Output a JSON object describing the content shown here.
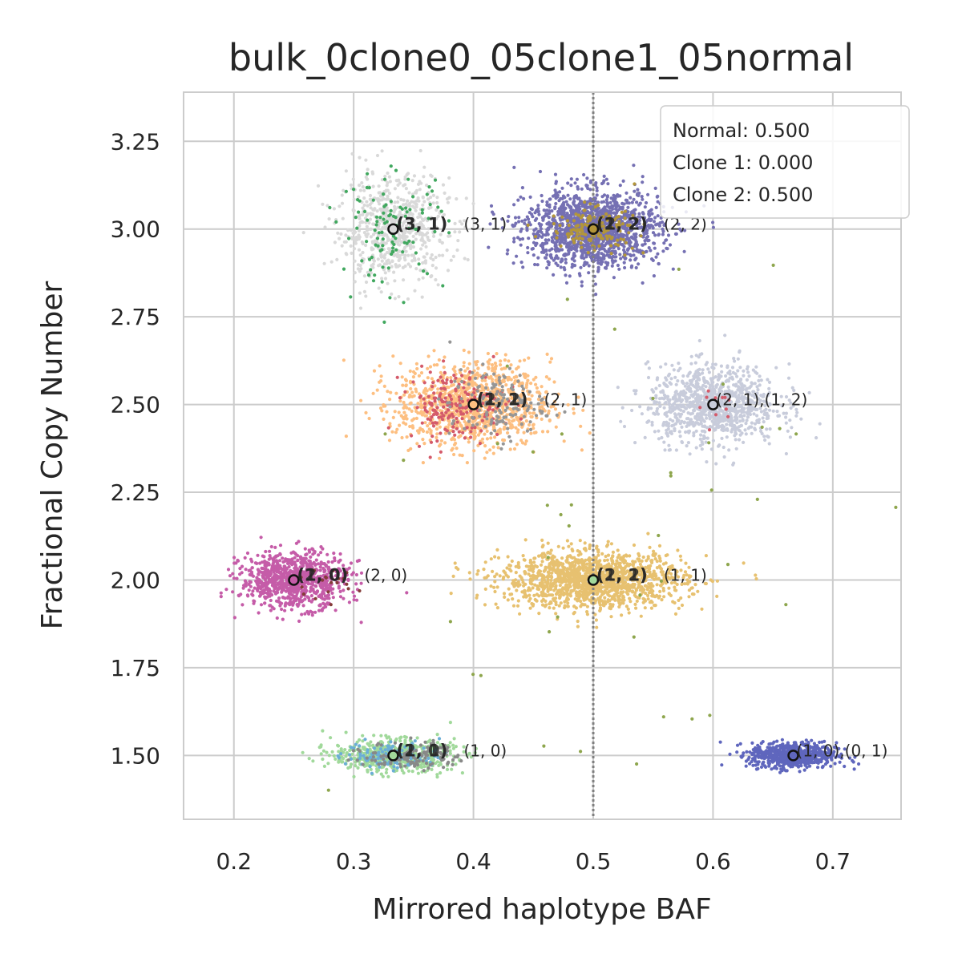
{
  "chart_data": {
    "type": "scatter",
    "title": "bulk_0clone0_05clone1_05normal",
    "xlabel": "Mirrored haplotype BAF",
    "ylabel": "Fractional Copy Number",
    "xlim": [
      0.158,
      0.757
    ],
    "ylim": [
      1.318,
      3.39
    ],
    "xticks": [
      0.2,
      0.3,
      0.4,
      0.5,
      0.6,
      0.7
    ],
    "xtick_labels": [
      "0.2",
      "0.3",
      "0.4",
      "0.5",
      "0.6",
      "0.7"
    ],
    "yticks": [
      1.5,
      1.75,
      2.0,
      2.25,
      2.5,
      2.75,
      3.0,
      3.25
    ],
    "ytick_labels": [
      "1.50",
      "1.75",
      "2.00",
      "2.25",
      "2.50",
      "2.75",
      "3.00",
      "3.25"
    ],
    "grid": true,
    "vline": {
      "x": 0.5,
      "color": "#7f7f7f",
      "style": "dotted"
    },
    "legend": {
      "placement": "top-right",
      "lines": [
        "Normal: 0.500",
        "Clone 1: 0.000",
        "Clone 2: 0.500"
      ]
    },
    "clusters": [
      {
        "center": [
          0.333,
          3.0
        ],
        "color": "#d9d9d9",
        "spread": [
          0.023,
          0.075
        ],
        "n": 700
      },
      {
        "center": [
          0.333,
          3.0
        ],
        "color": "#41a85f",
        "spread": [
          0.022,
          0.08
        ],
        "n": 110
      },
      {
        "center": [
          0.5,
          3.0
        ],
        "color": "#7570b3",
        "spread": [
          0.028,
          0.055
        ],
        "n": 1500
      },
      {
        "center": [
          0.5,
          3.0
        ],
        "color": "#b3963a",
        "spread": [
          0.018,
          0.03
        ],
        "n": 150
      },
      {
        "center": [
          0.4,
          2.5
        ],
        "color": "#fdbf81",
        "spread": [
          0.032,
          0.06
        ],
        "n": 1100
      },
      {
        "center": [
          0.385,
          2.5
        ],
        "color": "#d45a6a",
        "spread": [
          0.02,
          0.05
        ],
        "n": 200
      },
      {
        "center": [
          0.42,
          2.5
        ],
        "color": "#969696",
        "spread": [
          0.02,
          0.05
        ],
        "n": 150
      },
      {
        "center": [
          0.6,
          2.5
        ],
        "color": "#c8ccdb",
        "spread": [
          0.027,
          0.055
        ],
        "n": 1000
      },
      {
        "center": [
          0.6,
          2.5
        ],
        "color": "#d45a6a",
        "spread": [
          0.012,
          0.03
        ],
        "n": 12
      },
      {
        "center": [
          0.25,
          2.0
        ],
        "color": "#c55ca8",
        "spread": [
          0.022,
          0.04
        ],
        "n": 900
      },
      {
        "center": [
          0.275,
          2.0
        ],
        "color": "#843c39",
        "spread": [
          0.015,
          0.03
        ],
        "n": 20
      },
      {
        "center": [
          0.5,
          2.0
        ],
        "color": "#e7c170",
        "spread": [
          0.038,
          0.04
        ],
        "n": 1500
      },
      {
        "center": [
          0.333,
          1.5
        ],
        "color": "#a1d99b",
        "spread": [
          0.025,
          0.022
        ],
        "n": 600
      },
      {
        "center": [
          0.333,
          1.5
        ],
        "color": "#6baed6",
        "spread": [
          0.02,
          0.02
        ],
        "n": 120
      },
      {
        "center": [
          0.35,
          1.5
        ],
        "color": "#888888",
        "spread": [
          0.02,
          0.02
        ],
        "n": 120
      },
      {
        "center": [
          0.667,
          1.5
        ],
        "color": "#5f66bd",
        "spread": [
          0.018,
          0.018
        ],
        "n": 700
      },
      {
        "center": [
          0.5,
          2.2
        ],
        "color": "#8ea64d",
        "spread": [
          0.12,
          0.45
        ],
        "n": 45
      }
    ],
    "markers": [
      {
        "x": 0.333,
        "y": 3.0,
        "bold_labels": [
          "(3, 1)",
          "(3, 1)"
        ],
        "label": "(3, 1)",
        "face": "#d9d9d9"
      },
      {
        "x": 0.5,
        "y": 3.0,
        "bold_labels": [
          "(2, 2)",
          "(1, 2)"
        ],
        "label": "(2, 2)",
        "face": "#b3963a"
      },
      {
        "x": 0.4,
        "y": 2.5,
        "bold_labels": [
          "(1, 2)",
          "(2, 1)"
        ],
        "label": "(2, 1)",
        "face": "#fdbf81"
      },
      {
        "x": 0.6,
        "y": 2.5,
        "bold_labels": [],
        "label": "(2, 1),(1, 2)",
        "face": "#c8ccdb"
      },
      {
        "x": 0.25,
        "y": 2.0,
        "bold_labels": [
          "(1, 0)",
          "(2, 0)"
        ],
        "label": "(2, 0)",
        "face": "#c55ca8"
      },
      {
        "x": 0.5,
        "y": 2.0,
        "bold_labels": [
          "(1, 1)",
          "(2, 2)"
        ],
        "label": "(1, 1)",
        "face": "#a1d99b"
      },
      {
        "x": 0.333,
        "y": 1.5,
        "bold_labels": [
          "(1, 0)",
          "(2, 1)"
        ],
        "label": "(1, 0)",
        "face": "#a1d99b"
      },
      {
        "x": 0.667,
        "y": 1.5,
        "bold_labels": [],
        "label": "(1, 0),(0, 1)",
        "face": "#5f66bd"
      }
    ]
  }
}
